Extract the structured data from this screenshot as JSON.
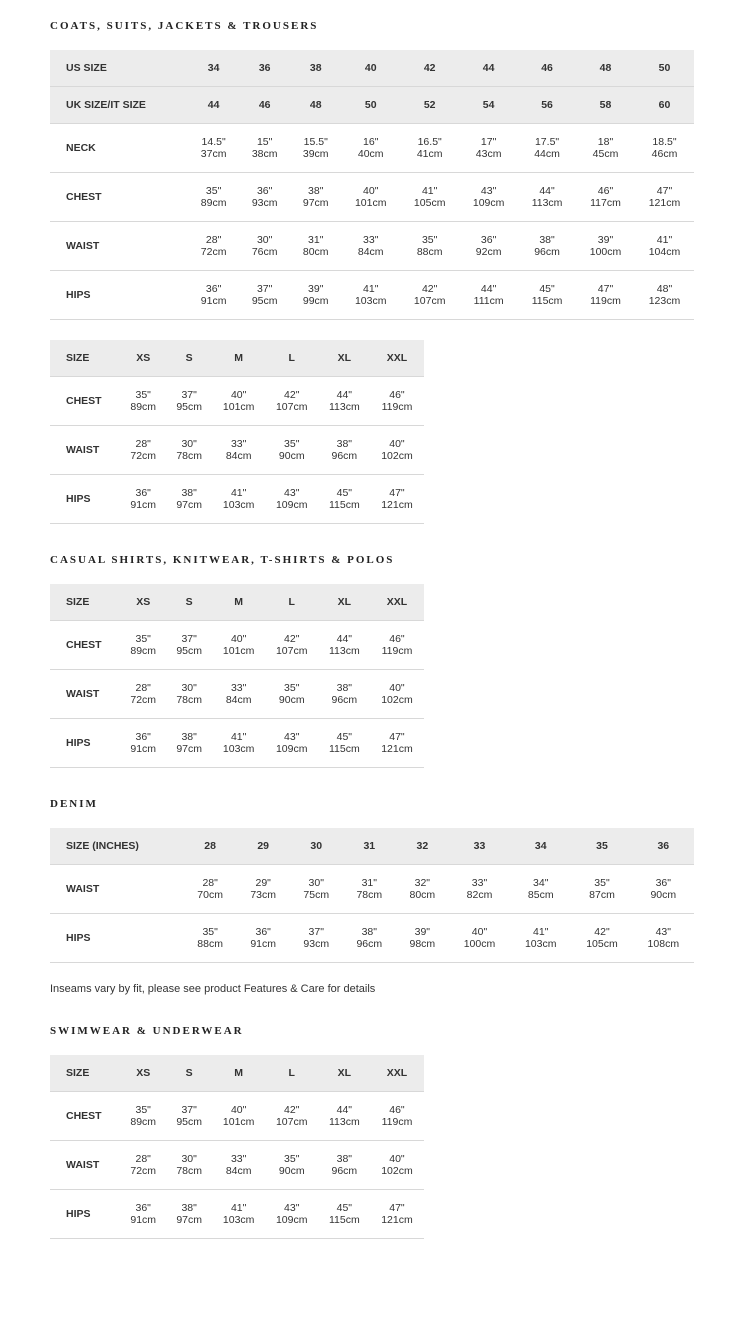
{
  "sections": [
    {
      "title": "COATS, SUITS, JACKETS & TROUSERS",
      "tables": [
        {
          "width": "wide",
          "headerRows": [
            [
              "US SIZE",
              "34",
              "36",
              "38",
              "40",
              "42",
              "44",
              "46",
              "48",
              "50"
            ],
            [
              "UK SIZE/IT SIZE",
              "44",
              "46",
              "48",
              "50",
              "52",
              "54",
              "56",
              "58",
              "60"
            ]
          ],
          "rows": [
            {
              "label": "NECK",
              "cells": [
                [
                  "14.5\"",
                  "37cm"
                ],
                [
                  "15\"",
                  "38cm"
                ],
                [
                  "15.5\"",
                  "39cm"
                ],
                [
                  "16\"",
                  "40cm"
                ],
                [
                  "16.5\"",
                  "41cm"
                ],
                [
                  "17\"",
                  "43cm"
                ],
                [
                  "17.5\"",
                  "44cm"
                ],
                [
                  "18\"",
                  "45cm"
                ],
                [
                  "18.5\"",
                  "46cm"
                ]
              ]
            },
            {
              "label": "CHEST",
              "cells": [
                [
                  "35\"",
                  "89cm"
                ],
                [
                  "36\"",
                  "93cm"
                ],
                [
                  "38\"",
                  "97cm"
                ],
                [
                  "40\"",
                  "101cm"
                ],
                [
                  "41\"",
                  "105cm"
                ],
                [
                  "43\"",
                  "109cm"
                ],
                [
                  "44\"",
                  "113cm"
                ],
                [
                  "46\"",
                  "117cm"
                ],
                [
                  "47\"",
                  "121cm"
                ]
              ]
            },
            {
              "label": "WAIST",
              "cells": [
                [
                  "28\"",
                  "72cm"
                ],
                [
                  "30\"",
                  "76cm"
                ],
                [
                  "31\"",
                  "80cm"
                ],
                [
                  "33\"",
                  "84cm"
                ],
                [
                  "35\"",
                  "88cm"
                ],
                [
                  "36\"",
                  "92cm"
                ],
                [
                  "38\"",
                  "96cm"
                ],
                [
                  "39\"",
                  "100cm"
                ],
                [
                  "41\"",
                  "104cm"
                ]
              ]
            },
            {
              "label": "HIPS",
              "cells": [
                [
                  "36\"",
                  "91cm"
                ],
                [
                  "37\"",
                  "95cm"
                ],
                [
                  "39\"",
                  "99cm"
                ],
                [
                  "41\"",
                  "103cm"
                ],
                [
                  "42\"",
                  "107cm"
                ],
                [
                  "44\"",
                  "111cm"
                ],
                [
                  "45\"",
                  "115cm"
                ],
                [
                  "47\"",
                  "119cm"
                ],
                [
                  "48\"",
                  "123cm"
                ]
              ]
            }
          ]
        },
        {
          "width": "narrow",
          "headerRows": [
            [
              "SIZE",
              "XS",
              "S",
              "M",
              "L",
              "XL",
              "XXL"
            ]
          ],
          "rows": [
            {
              "label": "CHEST",
              "cells": [
                [
                  "35\"",
                  "89cm"
                ],
                [
                  "37\"",
                  "95cm"
                ],
                [
                  "40\"",
                  "101cm"
                ],
                [
                  "42\"",
                  "107cm"
                ],
                [
                  "44\"",
                  "113cm"
                ],
                [
                  "46\"",
                  "119cm"
                ]
              ]
            },
            {
              "label": "WAIST",
              "cells": [
                [
                  "28\"",
                  "72cm"
                ],
                [
                  "30\"",
                  "78cm"
                ],
                [
                  "33\"",
                  "84cm"
                ],
                [
                  "35\"",
                  "90cm"
                ],
                [
                  "38\"",
                  "96cm"
                ],
                [
                  "40\"",
                  "102cm"
                ]
              ]
            },
            {
              "label": "HIPS",
              "cells": [
                [
                  "36\"",
                  "91cm"
                ],
                [
                  "38\"",
                  "97cm"
                ],
                [
                  "41\"",
                  "103cm"
                ],
                [
                  "43\"",
                  "109cm"
                ],
                [
                  "45\"",
                  "115cm"
                ],
                [
                  "47\"",
                  "121cm"
                ]
              ]
            }
          ]
        }
      ]
    },
    {
      "title": "CASUAL SHIRTS, KNITWEAR, T-SHIRTS & POLOS",
      "tables": [
        {
          "width": "narrow",
          "headerRows": [
            [
              "SIZE",
              "XS",
              "S",
              "M",
              "L",
              "XL",
              "XXL"
            ]
          ],
          "rows": [
            {
              "label": "CHEST",
              "cells": [
                [
                  "35\"",
                  "89cm"
                ],
                [
                  "37\"",
                  "95cm"
                ],
                [
                  "40\"",
                  "101cm"
                ],
                [
                  "42\"",
                  "107cm"
                ],
                [
                  "44\"",
                  "113cm"
                ],
                [
                  "46\"",
                  "119cm"
                ]
              ]
            },
            {
              "label": "WAIST",
              "cells": [
                [
                  "28\"",
                  "72cm"
                ],
                [
                  "30\"",
                  "78cm"
                ],
                [
                  "33\"",
                  "84cm"
                ],
                [
                  "35\"",
                  "90cm"
                ],
                [
                  "38\"",
                  "96cm"
                ],
                [
                  "40\"",
                  "102cm"
                ]
              ]
            },
            {
              "label": "HIPS",
              "cells": [
                [
                  "36\"",
                  "91cm"
                ],
                [
                  "38\"",
                  "97cm"
                ],
                [
                  "41\"",
                  "103cm"
                ],
                [
                  "43\"",
                  "109cm"
                ],
                [
                  "45\"",
                  "115cm"
                ],
                [
                  "47\"",
                  "121cm"
                ]
              ]
            }
          ]
        }
      ]
    },
    {
      "title": "DENIM",
      "tables": [
        {
          "width": "wide",
          "headerRows": [
            [
              "SIZE (INCHES)",
              "28",
              "29",
              "30",
              "31",
              "32",
              "33",
              "34",
              "35",
              "36"
            ]
          ],
          "rows": [
            {
              "label": "WAIST",
              "cells": [
                [
                  "28\"",
                  "70cm"
                ],
                [
                  "29\"",
                  "73cm"
                ],
                [
                  "30\"",
                  "75cm"
                ],
                [
                  "31\"",
                  "78cm"
                ],
                [
                  "32\"",
                  "80cm"
                ],
                [
                  "33\"",
                  "82cm"
                ],
                [
                  "34\"",
                  "85cm"
                ],
                [
                  "35\"",
                  "87cm"
                ],
                [
                  "36\"",
                  "90cm"
                ]
              ]
            },
            {
              "label": "HIPS",
              "cells": [
                [
                  "35\"",
                  "88cm"
                ],
                [
                  "36\"",
                  "91cm"
                ],
                [
                  "37\"",
                  "93cm"
                ],
                [
                  "38\"",
                  "96cm"
                ],
                [
                  "39\"",
                  "98cm"
                ],
                [
                  "40\"",
                  "100cm"
                ],
                [
                  "41\"",
                  "103cm"
                ],
                [
                  "42\"",
                  "105cm"
                ],
                [
                  "43\"",
                  "108cm"
                ]
              ]
            }
          ]
        }
      ],
      "note": "Inseams vary by fit, please see product Features & Care for details"
    },
    {
      "title": "SWIMWEAR & UNDERWEAR",
      "tables": [
        {
          "width": "narrow",
          "headerRows": [
            [
              "SIZE",
              "XS",
              "S",
              "M",
              "L",
              "XL",
              "XXL"
            ]
          ],
          "rows": [
            {
              "label": "CHEST",
              "cells": [
                [
                  "35\"",
                  "89cm"
                ],
                [
                  "37\"",
                  "95cm"
                ],
                [
                  "40\"",
                  "101cm"
                ],
                [
                  "42\"",
                  "107cm"
                ],
                [
                  "44\"",
                  "113cm"
                ],
                [
                  "46\"",
                  "119cm"
                ]
              ]
            },
            {
              "label": "WAIST",
              "cells": [
                [
                  "28\"",
                  "72cm"
                ],
                [
                  "30\"",
                  "78cm"
                ],
                [
                  "33\"",
                  "84cm"
                ],
                [
                  "35\"",
                  "90cm"
                ],
                [
                  "38\"",
                  "96cm"
                ],
                [
                  "40\"",
                  "102cm"
                ]
              ]
            },
            {
              "label": "HIPS",
              "cells": [
                [
                  "36\"",
                  "91cm"
                ],
                [
                  "38\"",
                  "97cm"
                ],
                [
                  "41\"",
                  "103cm"
                ],
                [
                  "43\"",
                  "109cm"
                ],
                [
                  "45\"",
                  "115cm"
                ],
                [
                  "47\"",
                  "121cm"
                ]
              ]
            }
          ]
        }
      ]
    }
  ]
}
